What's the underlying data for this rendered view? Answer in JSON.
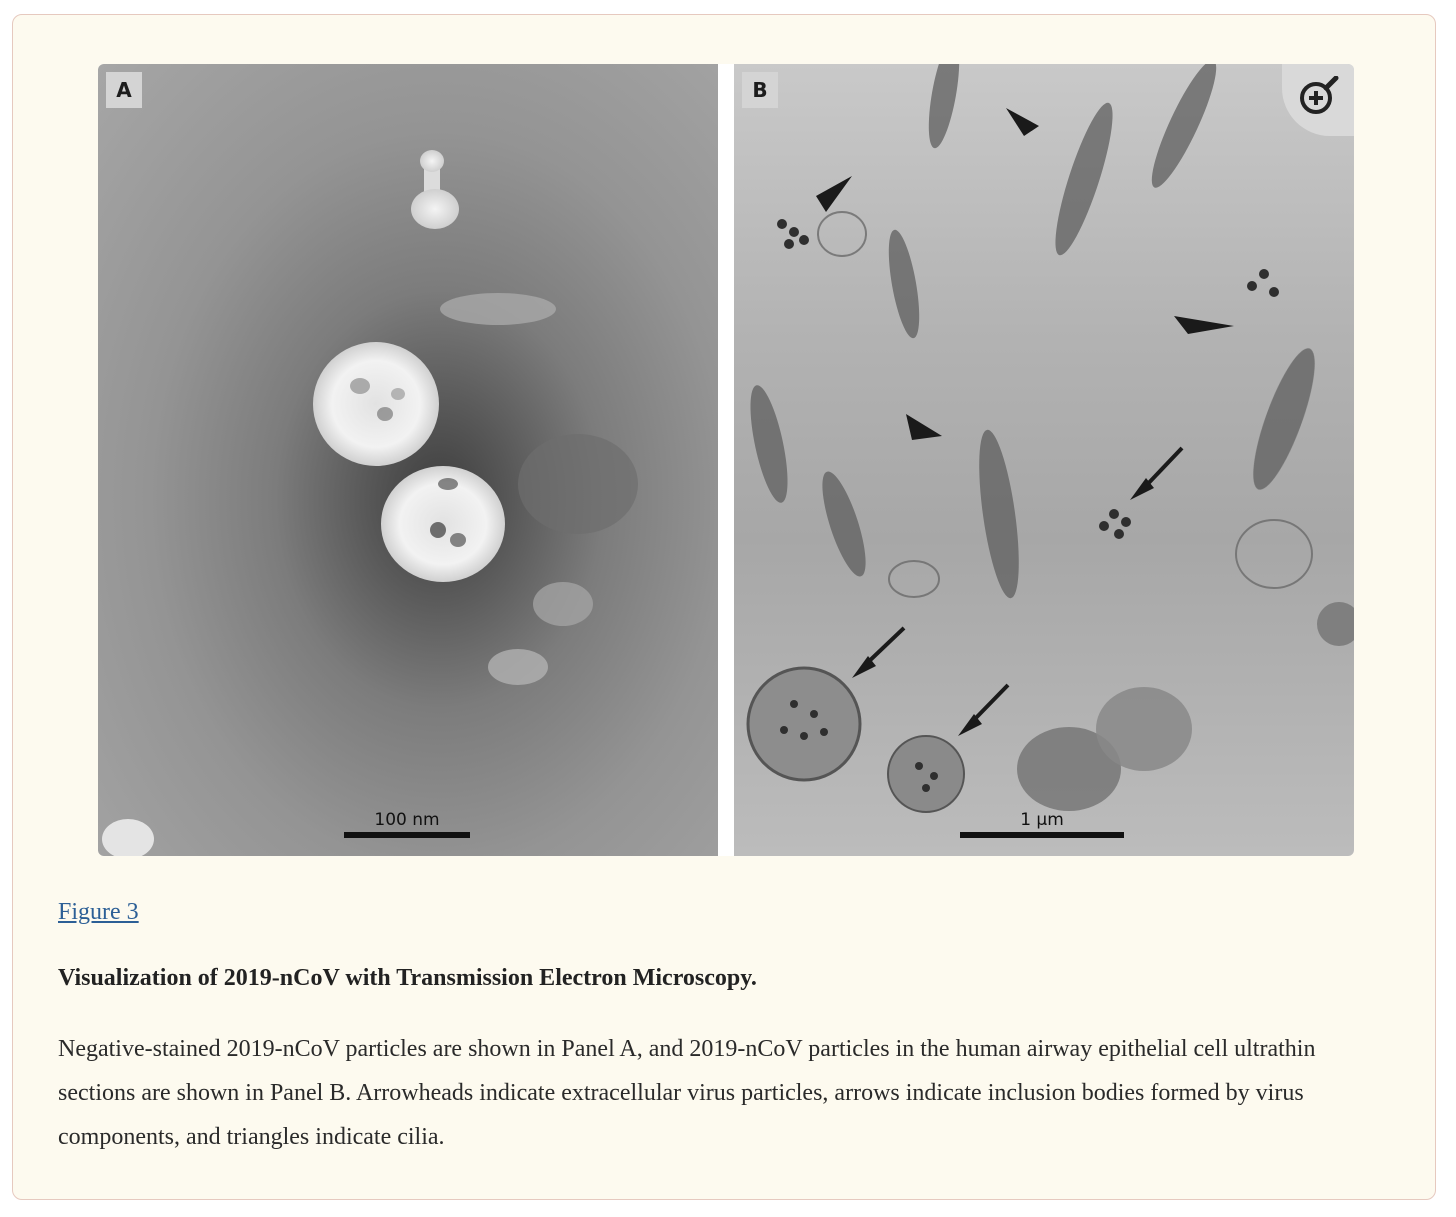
{
  "figure": {
    "panels": [
      {
        "letter": "A",
        "scale_label": "100 nm"
      },
      {
        "letter": "B",
        "scale_label": "1 μm"
      }
    ],
    "zoom_icon": "zoom-in-icon"
  },
  "caption": {
    "link_text": "Figure 3",
    "title": "Visualization of 2019-nCoV with Transmission Electron Microscopy.",
    "body": "Negative-stained 2019-nCoV particles are shown in Panel A, and 2019-nCoV particles in the human airway epithelial cell ultrathin sections are shown in Panel B. Arrowheads indicate extracellular virus particles, arrows indicate inclusion bodies formed by virus components, and triangles indicate cilia."
  },
  "colors": {
    "card_background": "#fdfaef",
    "card_border": "#e6c9bf",
    "link": "#2c5f96",
    "text": "#222222"
  }
}
